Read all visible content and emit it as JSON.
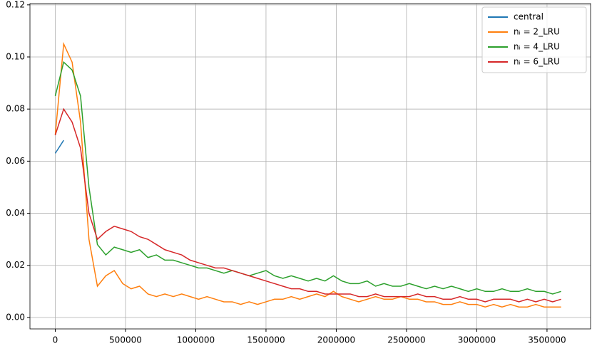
{
  "chart_data": {
    "type": "line",
    "x": [
      0,
      60000,
      120000,
      180000,
      240000,
      300000,
      360000,
      420000,
      480000,
      540000,
      600000,
      660000,
      720000,
      780000,
      840000,
      900000,
      960000,
      1020000,
      1080000,
      1140000,
      1200000,
      1260000,
      1320000,
      1380000,
      1440000,
      1500000,
      1560000,
      1620000,
      1680000,
      1740000,
      1800000,
      1860000,
      1920000,
      1980000,
      2040000,
      2100000,
      2160000,
      2220000,
      2280000,
      2340000,
      2400000,
      2460000,
      2520000,
      2580000,
      2640000,
      2700000,
      2760000,
      2820000,
      2880000,
      2940000,
      3000000,
      3060000,
      3120000,
      3180000,
      3240000,
      3300000,
      3360000,
      3420000,
      3480000,
      3540000,
      3600000
    ],
    "series": [
      {
        "name": "central",
        "color": "#1f77b4",
        "values": [
          0.063,
          0.068,
          null,
          null,
          null,
          null,
          null,
          null,
          null,
          null,
          null,
          null,
          null,
          null,
          null,
          null,
          null,
          null,
          null,
          null,
          null,
          null,
          null,
          null,
          null,
          null,
          null,
          null,
          null,
          null,
          null,
          null,
          null,
          null,
          null,
          null,
          null,
          null,
          null,
          null,
          null,
          null,
          null,
          null,
          null,
          null,
          null,
          null,
          null,
          null,
          null,
          null,
          null,
          null,
          null,
          null,
          null,
          null,
          null,
          null,
          null
        ]
      },
      {
        "name": "nᵢ = 2_LRU",
        "color": "#ff7f0e",
        "values": [
          0.07,
          0.105,
          0.098,
          0.075,
          0.03,
          0.012,
          0.016,
          0.018,
          0.013,
          0.011,
          0.012,
          0.009,
          0.008,
          0.009,
          0.008,
          0.009,
          0.008,
          0.007,
          0.008,
          0.007,
          0.006,
          0.006,
          0.005,
          0.006,
          0.005,
          0.006,
          0.007,
          0.007,
          0.008,
          0.007,
          0.008,
          0.009,
          0.008,
          0.01,
          0.008,
          0.007,
          0.006,
          0.007,
          0.008,
          0.007,
          0.007,
          0.008,
          0.007,
          0.007,
          0.006,
          0.006,
          0.005,
          0.005,
          0.006,
          0.005,
          0.005,
          0.004,
          0.005,
          0.004,
          0.005,
          0.004,
          0.004,
          0.005,
          0.004,
          0.004,
          0.004
        ]
      },
      {
        "name": "nᵢ = 4_LRU",
        "color": "#2ca02c",
        "values": [
          0.085,
          0.098,
          0.095,
          0.085,
          0.05,
          0.028,
          0.024,
          0.027,
          0.026,
          0.025,
          0.026,
          0.023,
          0.024,
          0.022,
          0.022,
          0.021,
          0.02,
          0.019,
          0.019,
          0.018,
          0.017,
          0.018,
          0.017,
          0.016,
          0.017,
          0.018,
          0.016,
          0.015,
          0.016,
          0.015,
          0.014,
          0.015,
          0.014,
          0.016,
          0.014,
          0.013,
          0.013,
          0.014,
          0.012,
          0.013,
          0.012,
          0.012,
          0.013,
          0.012,
          0.011,
          0.012,
          0.011,
          0.012,
          0.011,
          0.01,
          0.011,
          0.01,
          0.01,
          0.011,
          0.01,
          0.01,
          0.011,
          0.01,
          0.01,
          0.009,
          0.01
        ]
      },
      {
        "name": "nᵢ = 6_LRU",
        "color": "#d62728",
        "values": [
          0.07,
          0.08,
          0.075,
          0.065,
          0.04,
          0.03,
          0.033,
          0.035,
          0.034,
          0.033,
          0.031,
          0.03,
          0.028,
          0.026,
          0.025,
          0.024,
          0.022,
          0.021,
          0.02,
          0.019,
          0.019,
          0.018,
          0.017,
          0.016,
          0.015,
          0.014,
          0.013,
          0.012,
          0.011,
          0.011,
          0.01,
          0.01,
          0.009,
          0.009,
          0.009,
          0.009,
          0.008,
          0.008,
          0.009,
          0.008,
          0.008,
          0.008,
          0.008,
          0.009,
          0.008,
          0.008,
          0.007,
          0.007,
          0.008,
          0.007,
          0.007,
          0.006,
          0.007,
          0.007,
          0.007,
          0.006,
          0.007,
          0.006,
          0.007,
          0.006,
          0.007
        ]
      }
    ],
    "xlim": [
      -180000,
      3810000
    ],
    "ylim": [
      -0.0044,
      0.1205
    ],
    "xticks": [
      0,
      500000,
      1000000,
      1500000,
      2000000,
      2500000,
      3000000,
      3500000
    ],
    "yticks": [
      {
        "value": 0,
        "label": "0.00"
      },
      {
        "value": 0.02,
        "label": "0.02"
      },
      {
        "value": 0.04,
        "label": "0.04"
      },
      {
        "value": 0.06,
        "label": "0.06"
      },
      {
        "value": 0.08,
        "label": "0.08"
      },
      {
        "value": 0.1,
        "label": "0.10"
      },
      {
        "value": 0.12,
        "label": "0.12"
      }
    ],
    "grid": true,
    "legend": "upper right"
  }
}
